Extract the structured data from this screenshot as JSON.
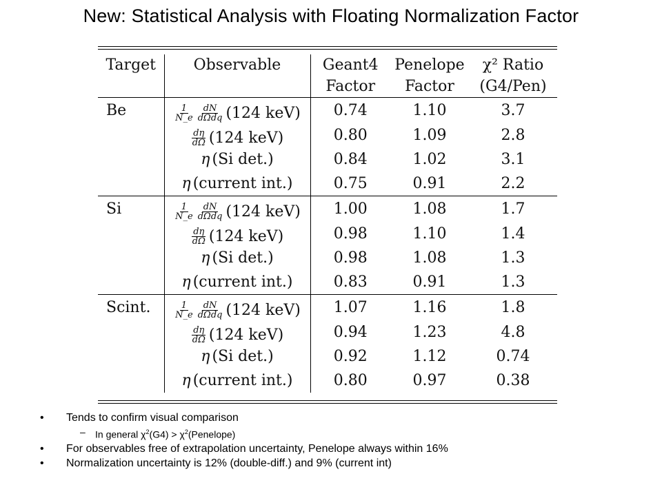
{
  "title": "New:  Statistical Analysis with Floating Normalization Factor",
  "table": {
    "headers": {
      "target": "Target",
      "observable": "Observable",
      "geant4_line1": "Geant4",
      "geant4_line2": "Factor",
      "penelope_line1": "Penelope",
      "penelope_line2": "Factor",
      "ratio_line1": "χ² Ratio",
      "ratio_line2": "(G4/Pen)"
    },
    "observables": {
      "o1_frac1_num": "1",
      "o1_frac1_den": "N_e",
      "o1_frac2_num": "dN",
      "o1_frac2_den": "dΩdq",
      "o1_text": "(124 keV)",
      "o2_frac_num": "dη",
      "o2_frac_den": "dΩ",
      "o2_text": "(124 keV)",
      "o3_eta": "η",
      "o3_text": "(Si det.)",
      "o4_eta": "η",
      "o4_text": "(current int.)"
    },
    "groups": [
      {
        "target": "Be",
        "rows": [
          {
            "g4": "0.74",
            "pen": "1.10",
            "ratio": "3.7"
          },
          {
            "g4": "0.80",
            "pen": "1.09",
            "ratio": "2.8"
          },
          {
            "g4": "0.84",
            "pen": "1.02",
            "ratio": "3.1"
          },
          {
            "g4": "0.75",
            "pen": "0.91",
            "ratio": "2.2"
          }
        ]
      },
      {
        "target": "Si",
        "rows": [
          {
            "g4": "1.00",
            "pen": "1.08",
            "ratio": "1.7"
          },
          {
            "g4": "0.98",
            "pen": "1.10",
            "ratio": "1.4"
          },
          {
            "g4": "0.98",
            "pen": "1.08",
            "ratio": "1.3"
          },
          {
            "g4": "0.83",
            "pen": "0.91",
            "ratio": "1.3"
          }
        ]
      },
      {
        "target": "Scint.",
        "rows": [
          {
            "g4": "1.07",
            "pen": "1.16",
            "ratio": "1.8"
          },
          {
            "g4": "0.94",
            "pen": "1.23",
            "ratio": "4.8"
          },
          {
            "g4": "0.92",
            "pen": "1.12",
            "ratio": "0.74"
          },
          {
            "g4": "0.80",
            "pen": "0.97",
            "ratio": "0.38"
          }
        ]
      }
    ]
  },
  "bullets": {
    "b1": "Tends to confirm visual comparison",
    "sub1_pre": "In general χ",
    "sub1_sup1": "2",
    "sub1_mid": "(G4) > χ",
    "sub1_sup2": "2",
    "sub1_post": "(Penelope)",
    "b2": "For observables free of extrapolation uncertainty, Penelope always within 16%",
    "b3": "Normalization uncertainty is 12% (double-diff.) and 9% (current int)"
  }
}
